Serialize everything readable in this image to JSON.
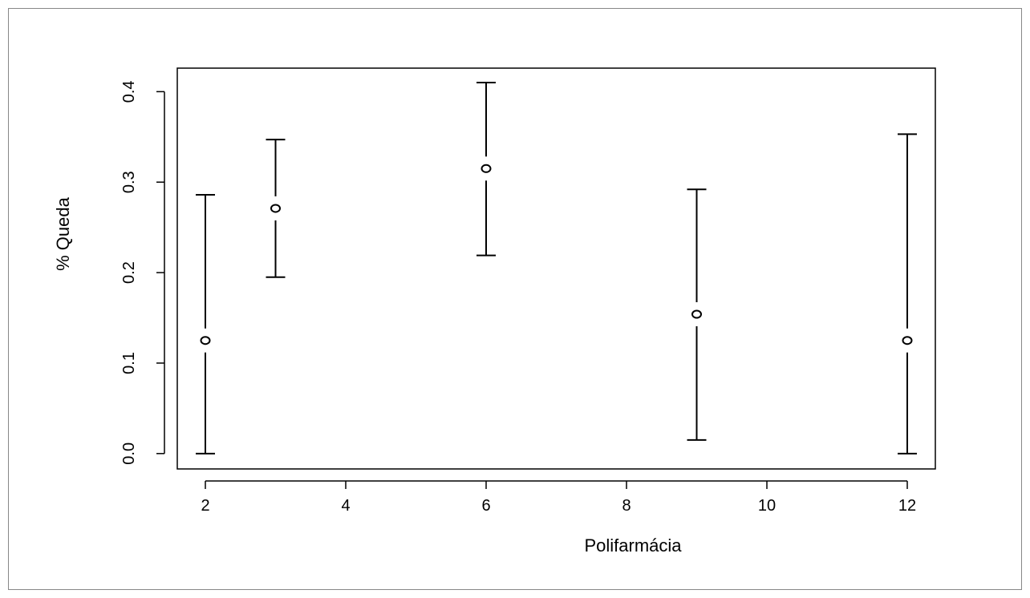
{
  "chart_data": {
    "type": "scatter",
    "subtype": "point-with-error-bars",
    "title": "",
    "xlabel": "Polifarmácia",
    "ylabel": "% Queda",
    "xlim": [
      1.6,
      12.4
    ],
    "ylim": [
      -0.017,
      0.426
    ],
    "xticks": [
      2,
      4,
      6,
      8,
      10,
      12
    ],
    "yticks": [
      0.0,
      0.1,
      0.2,
      0.3,
      0.4
    ],
    "xtick_labels": [
      "2",
      "4",
      "6",
      "8",
      "10",
      "12"
    ],
    "ytick_labels": [
      "0.0",
      "0.1",
      "0.2",
      "0.3",
      "0.4"
    ],
    "grid": false,
    "marker": "open-circle",
    "series": [
      {
        "points": [
          {
            "x": 2,
            "y": 0.125,
            "lower": 0.0,
            "upper": 0.286
          },
          {
            "x": 3,
            "y": 0.271,
            "lower": 0.195,
            "upper": 0.347
          },
          {
            "x": 6,
            "y": 0.315,
            "lower": 0.219,
            "upper": 0.41
          },
          {
            "x": 9,
            "y": 0.154,
            "lower": 0.015,
            "upper": 0.292
          },
          {
            "x": 12,
            "y": 0.125,
            "lower": 0.0,
            "upper": 0.353
          }
        ]
      }
    ]
  }
}
